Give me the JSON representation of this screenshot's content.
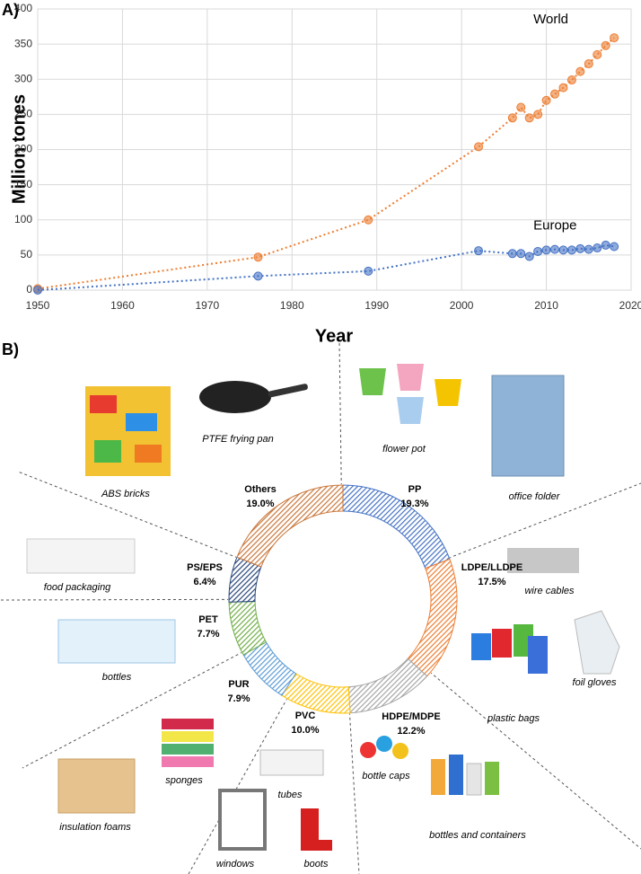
{
  "chart_data": [
    {
      "type": "line",
      "label": "A)",
      "xlabel": "Year",
      "ylabel": "Million tones",
      "x": [
        1950,
        1976,
        1989,
        2002,
        2006,
        2007,
        2008,
        2009,
        2010,
        2011,
        2012,
        2013,
        2014,
        2015,
        2016,
        2017,
        2018
      ],
      "series": [
        {
          "name": "World",
          "color": "#ed7d31",
          "values": [
            2,
            47,
            100,
            204,
            245,
            260,
            245,
            250,
            270,
            279,
            288,
            299,
            311,
            322,
            335,
            348,
            359
          ]
        },
        {
          "name": "Europe",
          "color": "#4472c4",
          "values": [
            0,
            20,
            27,
            56,
            52,
            52,
            48,
            55,
            57,
            58,
            57,
            57,
            59,
            58,
            60,
            64,
            62
          ]
        }
      ],
      "xlim": [
        1950,
        2020
      ],
      "xticks": [
        1950,
        1960,
        1970,
        1980,
        1990,
        2000,
        2010,
        2020
      ],
      "ylim": [
        0,
        400
      ],
      "yticks": [
        0,
        50,
        100,
        150,
        200,
        250,
        300,
        350,
        400
      ],
      "grid": true
    },
    {
      "type": "donut",
      "label": "B)",
      "categories": [
        "PP",
        "LDPE/LLDPE",
        "HDPE/MDPE",
        "PVC",
        "PUR",
        "PET",
        "PS/EPS",
        "Others"
      ],
      "values": [
        19.3,
        17.5,
        12.2,
        10.0,
        7.9,
        7.7,
        6.4,
        19.0
      ],
      "value_labels": [
        "19.3%",
        "17.5%",
        "12.2%",
        "10.0%",
        "7.9%",
        "7.7%",
        "6.4%",
        "19.0%"
      ],
      "colors": [
        "#4472c4",
        "#ed7d31",
        "#a5a5a5",
        "#ffc000",
        "#5b9bd5",
        "#70ad47",
        "#264478",
        "#c9773a"
      ],
      "examples": [
        "PTFE frying pan",
        "ABS bricks",
        "flower pot",
        "office folder",
        "wire cables",
        "foil gloves",
        "plastic bags",
        "bottles and containers",
        "bottle caps",
        "tubes",
        "boots",
        "windows",
        "sponges",
        "insulation foams",
        "bottles",
        "food packaging"
      ]
    }
  ]
}
